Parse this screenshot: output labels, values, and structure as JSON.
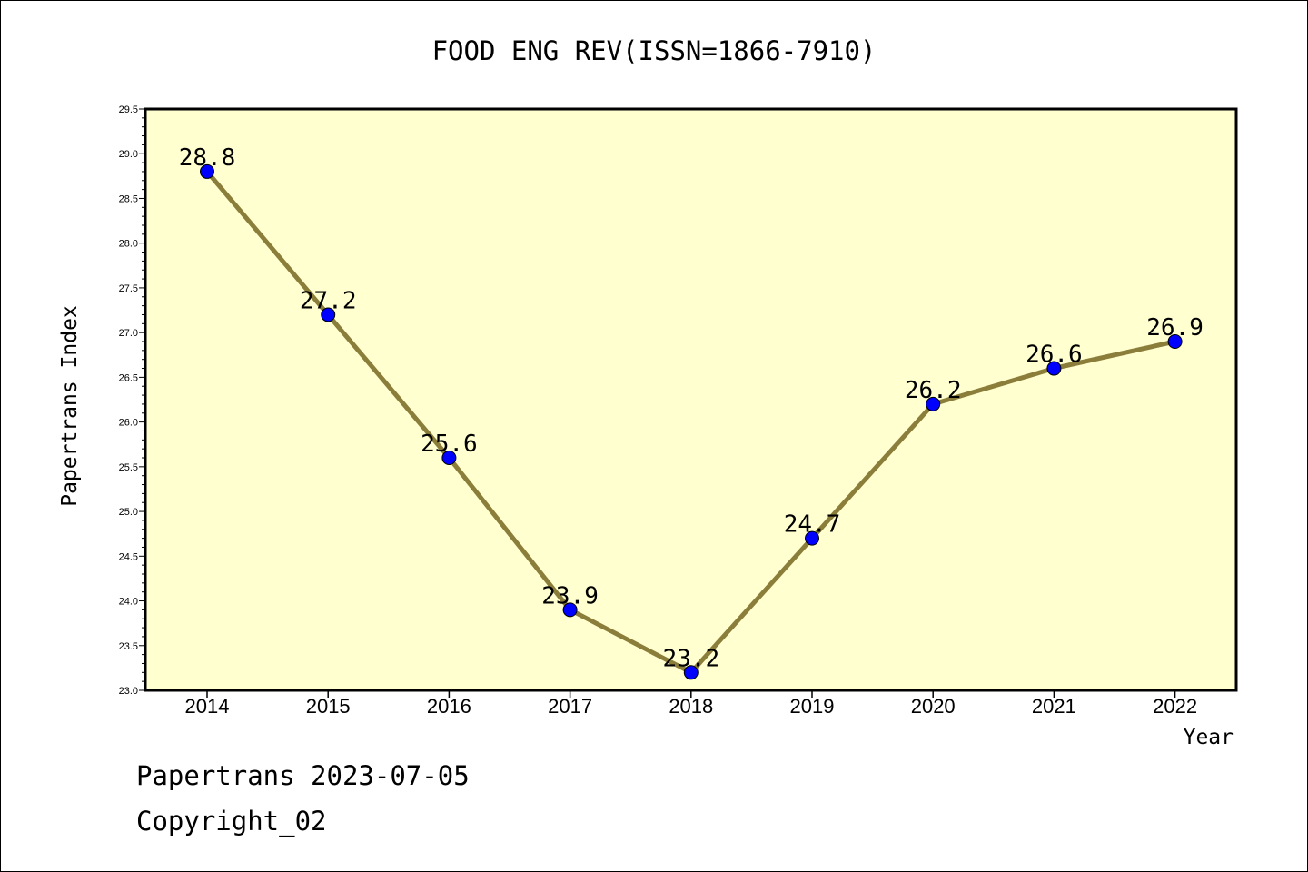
{
  "footer": {
    "line1": "Papertrans 2023-07-05",
    "line2": "Copyright_02"
  },
  "chart_data": {
    "type": "line",
    "title": "FOOD ENG REV(ISSN=1866-7910)",
    "xlabel": "Year",
    "ylabel": "Papertrans Index",
    "categories": [
      "2014",
      "2015",
      "2016",
      "2017",
      "2018",
      "2019",
      "2020",
      "2021",
      "2022"
    ],
    "values": [
      28.8,
      27.2,
      25.6,
      23.9,
      23.2,
      24.7,
      26.2,
      26.6,
      26.9
    ],
    "data_labels": [
      "28.8",
      "27.2",
      "25.6",
      "23.9",
      "23.2",
      "24.7",
      "26.2",
      "26.6",
      "26.9"
    ],
    "ylim": [
      23.0,
      29.5
    ],
    "yticks": [
      "23.0",
      "23.5",
      "24.0",
      "24.5",
      "25.0",
      "25.5",
      "26.0",
      "26.5",
      "27.0",
      "27.5",
      "28.0",
      "28.5",
      "29.0",
      "29.5"
    ],
    "grid": false,
    "colors": {
      "plot_background": "#ffffd0",
      "line": "#8b7d3a",
      "marker": "#0000ff"
    }
  }
}
